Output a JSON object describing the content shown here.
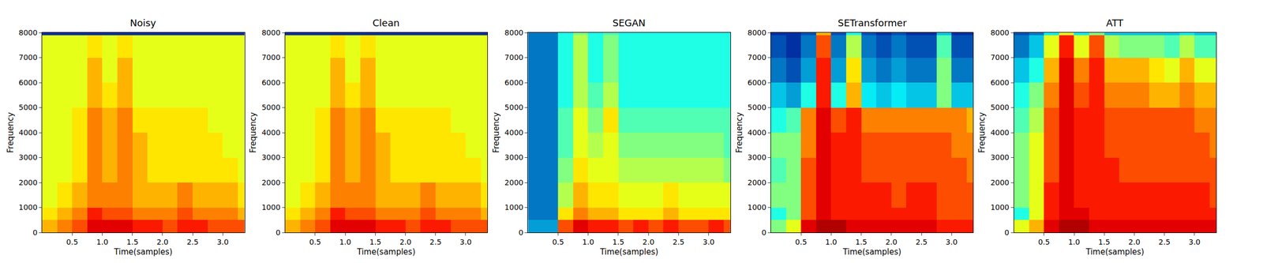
{
  "chart_data": [
    {
      "type": "heatmap",
      "title": "Noisy",
      "x_label": "Time(samples)",
      "y_label": "Frequency",
      "color": "Jet",
      "x": [
        0,
        0.25,
        0.5,
        0.75,
        1,
        1.25,
        1.5,
        1.75,
        2,
        2.25,
        2.5,
        2.75,
        3,
        3.25,
        3.5
      ],
      "y": [
        0,
        500,
        1000,
        2000,
        3000,
        4000,
        5000,
        6000,
        7000,
        7900,
        8000
      ],
      "z": [
        [
          7,
          7.5,
          8,
          9,
          9,
          9,
          8.5,
          8.5,
          8,
          8.5,
          8.5,
          8,
          8,
          8
        ],
        [
          6.5,
          7,
          7.5,
          8.5,
          8,
          8,
          7.5,
          7.5,
          7.5,
          8,
          7.5,
          7.5,
          7.5,
          7
        ],
        [
          6,
          6.5,
          7,
          7.5,
          7.5,
          7.5,
          7,
          7,
          7,
          7.5,
          7,
          7,
          7,
          6.5
        ],
        [
          6,
          6,
          6.5,
          7.5,
          7,
          7.5,
          7,
          6.5,
          6.5,
          6.5,
          6.5,
          6.5,
          6.5,
          6
        ],
        [
          6,
          6,
          6.5,
          7.5,
          7,
          7.5,
          7,
          6.5,
          6.5,
          6.5,
          6.5,
          6.5,
          6,
          6
        ],
        [
          6,
          6,
          6.5,
          7.5,
          7,
          7.5,
          6.5,
          6.5,
          6.5,
          6.5,
          6.5,
          6,
          6,
          6
        ],
        [
          6,
          6,
          6,
          7,
          6.5,
          7,
          6,
          6,
          6,
          6,
          6,
          6,
          6,
          6
        ],
        [
          6,
          6,
          6,
          7,
          6,
          7,
          6,
          6,
          6,
          6,
          6,
          6,
          6,
          6
        ],
        [
          6,
          6,
          6,
          6.5,
          6,
          6.5,
          6,
          6,
          6,
          6,
          6,
          6,
          6,
          6
        ],
        [
          1,
          1,
          1,
          1,
          1,
          1,
          1,
          1,
          1,
          1,
          1,
          1,
          1,
          1
        ]
      ],
      "zlim": [
        0,
        10
      ],
      "xlim": [
        0,
        3.36
      ],
      "ylim": [
        0,
        8000
      ],
      "xticks": [
        0.5,
        {
          "value": 1,
          "label": "1.0"
        },
        1.5,
        {
          "value": 2,
          "label": "2.0"
        },
        2.5,
        {
          "value": 3,
          "label": "3.0"
        }
      ],
      "yticks": [
        0,
        1000,
        2000,
        3000,
        4000,
        5000,
        6000,
        7000,
        8000
      ]
    },
    {
      "type": "heatmap",
      "title": "Clean",
      "x_label": "Time(samples)",
      "y_label": "Frequency",
      "color": "Jet",
      "x": [
        0,
        0.25,
        0.5,
        0.75,
        1,
        1.25,
        1.5,
        1.75,
        2,
        2.25,
        2.5,
        2.75,
        3,
        3.25,
        3.5
      ],
      "y": [
        0,
        500,
        1000,
        2000,
        3000,
        4000,
        5000,
        6000,
        7000,
        7900,
        8000
      ],
      "z": [
        [
          7,
          7.5,
          8,
          9,
          9,
          9,
          8.5,
          8.5,
          8,
          8.5,
          8.5,
          8,
          8,
          8
        ],
        [
          6.5,
          7,
          7.5,
          8.5,
          8,
          8,
          7.5,
          7.5,
          7.5,
          8,
          7.5,
          7.5,
          7.5,
          7
        ],
        [
          6,
          6.5,
          7,
          7.5,
          7.5,
          7.5,
          7,
          7,
          7,
          7.5,
          7,
          7,
          7,
          6.5
        ],
        [
          6,
          6,
          6.5,
          7.5,
          7,
          7.5,
          7,
          6.5,
          6.5,
          6.5,
          6.5,
          6.5,
          6.5,
          6
        ],
        [
          6,
          6,
          6.5,
          7.5,
          7,
          7.5,
          7,
          6.5,
          6.5,
          6.5,
          6.5,
          6.5,
          6,
          6
        ],
        [
          6,
          6,
          6.5,
          7.5,
          7,
          7.5,
          6.5,
          6.5,
          6.5,
          6.5,
          6.5,
          6,
          6,
          6
        ],
        [
          6,
          6,
          6,
          7,
          6.5,
          7,
          6,
          6,
          6,
          6,
          6,
          6,
          6,
          6
        ],
        [
          6,
          6,
          6,
          7,
          6,
          7,
          6,
          6,
          6,
          6,
          6,
          6,
          6,
          6
        ],
        [
          6,
          6,
          6,
          6.5,
          6,
          6.5,
          6,
          6,
          6,
          6,
          6,
          6,
          6,
          6
        ],
        [
          1,
          1,
          1,
          1,
          1,
          1,
          1,
          1,
          1,
          1,
          1,
          1,
          1,
          1
        ]
      ],
      "zlim": [
        0,
        10
      ],
      "xlim": [
        0,
        3.36
      ],
      "ylim": [
        0,
        8000
      ],
      "xticks": [
        0.5,
        {
          "value": 1,
          "label": "1.0"
        },
        1.5,
        {
          "value": 2,
          "label": "2.0"
        },
        2.5,
        {
          "value": 3,
          "label": "3.0"
        }
      ],
      "yticks": [
        0,
        1000,
        2000,
        3000,
        4000,
        5000,
        6000,
        7000,
        8000
      ]
    },
    {
      "type": "heatmap",
      "title": "SEGAN",
      "x_label": "Time(samples)",
      "y_label": "Frequency",
      "color": "Jet",
      "x": [
        0,
        0.25,
        0.5,
        0.75,
        1,
        1.25,
        1.5,
        1.75,
        2,
        2.25,
        2.5,
        2.75,
        3,
        3.25,
        3.5
      ],
      "y": [
        0,
        500,
        1000,
        2000,
        3000,
        4000,
        5000,
        6000,
        7000,
        7900,
        8000
      ],
      "z": [
        [
          2.5,
          2.5,
          8,
          9,
          8.5,
          8.5,
          8,
          8.5,
          8,
          8.5,
          8,
          8,
          8.5,
          8
        ],
        [
          2,
          2,
          6.5,
          7.5,
          7,
          7,
          6.5,
          6.5,
          6.5,
          7,
          6.5,
          6.5,
          6.5,
          6.5
        ],
        [
          2,
          2,
          5.5,
          7,
          6.5,
          6.5,
          6,
          6,
          6,
          6.5,
          6,
          6,
          6,
          6
        ],
        [
          2,
          2,
          5,
          6.5,
          6,
          6,
          5.5,
          5.5,
          5.5,
          5.5,
          5.5,
          5.5,
          5.5,
          5
        ],
        [
          2,
          2,
          4.5,
          6,
          5.5,
          6,
          5,
          5,
          5,
          5,
          5,
          5,
          5,
          4.5
        ],
        [
          2,
          2,
          4.5,
          6,
          5,
          6.5,
          4.5,
          4.5,
          4.5,
          4.5,
          4.5,
          4.5,
          4.5,
          4.5
        ],
        [
          2,
          2,
          4,
          5.5,
          4.5,
          5.5,
          4,
          4,
          4,
          4,
          4,
          4,
          4,
          4
        ],
        [
          2,
          2,
          4,
          5.5,
          4,
          5,
          4,
          4,
          4,
          4,
          4,
          4,
          4,
          4
        ],
        [
          2,
          2,
          4,
          5.5,
          4,
          5,
          4,
          4,
          4,
          4,
          4,
          4,
          4,
          4
        ],
        [
          2,
          2,
          4,
          5,
          4,
          4.5,
          4,
          4,
          4,
          4,
          4,
          4,
          4,
          4
        ]
      ],
      "zlim": [
        0,
        10
      ],
      "xlim": [
        0,
        3.36
      ],
      "ylim": [
        0,
        8000
      ],
      "xticks": [
        0.5,
        {
          "value": 1,
          "label": "1.0"
        },
        1.5,
        {
          "value": 2,
          "label": "2.0"
        },
        2.5,
        {
          "value": 3,
          "label": "3.0"
        }
      ],
      "yticks": [
        0,
        1000,
        2000,
        3000,
        4000,
        5000,
        6000,
        7000,
        8000
      ]
    },
    {
      "type": "heatmap",
      "title": "SETransformer",
      "x_label": "Time(samples)",
      "y_label": "Frequency",
      "color": "Jet",
      "x": [
        0,
        0.25,
        0.5,
        0.75,
        1,
        1.25,
        1.5,
        1.75,
        2,
        2.25,
        2.5,
        2.75,
        3,
        3.25,
        3.5
      ],
      "y": [
        0,
        500,
        1000,
        2000,
        3000,
        4000,
        5000,
        6000,
        7000,
        7900,
        8000
      ],
      "z": [
        [
          5,
          6,
          9,
          9.5,
          9.5,
          9,
          9,
          9,
          9,
          9,
          9,
          8.5,
          8.5,
          8.5
        ],
        [
          4,
          5,
          8,
          9,
          8.5,
          8.5,
          8.5,
          8.5,
          8.5,
          8.5,
          8.5,
          8,
          8,
          8
        ],
        [
          5,
          5,
          8,
          9,
          8.5,
          8.5,
          8.5,
          8.5,
          8,
          8.5,
          8.5,
          8,
          8,
          8
        ],
        [
          4.5,
          5,
          8,
          9,
          8.5,
          8.5,
          8,
          8,
          8,
          8,
          8,
          8,
          8,
          7.5
        ],
        [
          5,
          5,
          7.5,
          9,
          8.5,
          8.5,
          8,
          8,
          8,
          8,
          8,
          8,
          7.5,
          7.5
        ],
        [
          4,
          4.5,
          7.5,
          9,
          8,
          8.5,
          7.5,
          7.5,
          7.5,
          7.5,
          7.5,
          7.5,
          7.5,
          7
        ],
        [
          3,
          2.5,
          4,
          8.5,
          4,
          7,
          3.5,
          3,
          3.5,
          3,
          3,
          5,
          3,
          3
        ],
        [
          2,
          1.5,
          2.5,
          8.5,
          2.5,
          6.5,
          2.5,
          2,
          2.5,
          2,
          2,
          5,
          2,
          2
        ],
        [
          1.5,
          1,
          2,
          8,
          2,
          5.5,
          2,
          1.5,
          2,
          1.5,
          1.5,
          4.5,
          1.5,
          1.5
        ],
        [
          1,
          1,
          1.5,
          7,
          1.5,
          4,
          1.5,
          1,
          1.5,
          1,
          1,
          3,
          1,
          1
        ]
      ],
      "zlim": [
        0,
        10
      ],
      "xlim": [
        0,
        3.36
      ],
      "ylim": [
        0,
        8000
      ],
      "xticks": [
        0.5,
        {
          "value": 1,
          "label": "1.0"
        },
        1.5,
        {
          "value": 2,
          "label": "2.0"
        },
        2.5,
        {
          "value": 3,
          "label": "3.0"
        }
      ],
      "yticks": [
        0,
        1000,
        2000,
        3000,
        4000,
        5000,
        6000,
        7000,
        8000
      ]
    },
    {
      "type": "heatmap",
      "title": "ATT",
      "x_label": "Time(samples)",
      "y_label": "Frequency",
      "color": "Jet",
      "x": [
        0,
        0.25,
        0.5,
        0.75,
        1,
        1.25,
        1.5,
        1.75,
        2,
        2.25,
        2.5,
        2.75,
        3,
        3.25,
        3.5
      ],
      "y": [
        0,
        500,
        1000,
        2000,
        3000,
        4000,
        5000,
        6000,
        7000,
        7900,
        8000
      ],
      "z": [
        [
          6,
          7,
          9,
          9.5,
          9.5,
          9,
          9,
          9,
          9,
          9,
          9,
          9,
          9,
          9
        ],
        [
          4,
          6,
          8.5,
          9,
          9,
          8.5,
          8.5,
          8.5,
          8.5,
          8.5,
          8.5,
          8.5,
          8.5,
          8.5
        ],
        [
          5,
          6,
          8.5,
          9,
          8.5,
          8.5,
          8.5,
          8.5,
          8.5,
          8.5,
          8.5,
          8.5,
          8.5,
          8
        ],
        [
          5,
          6,
          8,
          9,
          8.5,
          8.5,
          8.5,
          8,
          8,
          8,
          8,
          8,
          8,
          8
        ],
        [
          5,
          6,
          8,
          9,
          8.5,
          8.5,
          8,
          8,
          8,
          8,
          8,
          8,
          8,
          7.5
        ],
        [
          4.5,
          5.5,
          8,
          9,
          8.5,
          8.5,
          8,
          8,
          8,
          8,
          8,
          8,
          7.5,
          7.5
        ],
        [
          4,
          5,
          7.5,
          9,
          8,
          8.5,
          7.5,
          7.5,
          7.5,
          7,
          7,
          7.5,
          7,
          7
        ],
        [
          3,
          4,
          7,
          9,
          7.5,
          8.5,
          7,
          7,
          7,
          6.5,
          6,
          7,
          6,
          6
        ],
        [
          2,
          3,
          6,
          8.5,
          6,
          8,
          5.5,
          5,
          5,
          5,
          4.5,
          5.5,
          4.5,
          4.5
        ],
        [
          1.5,
          2,
          3.5,
          6,
          3.5,
          5,
          3,
          3,
          3,
          3,
          3,
          3.5,
          3,
          3
        ]
      ],
      "zlim": [
        0,
        10
      ],
      "xlim": [
        0,
        3.36
      ],
      "ylim": [
        0,
        8000
      ],
      "xticks": [
        0.5,
        {
          "value": 1,
          "label": "1.0"
        },
        1.5,
        {
          "value": 2,
          "label": "2.0"
        },
        2.5,
        {
          "value": 3,
          "label": "3.0"
        }
      ],
      "yticks": [
        0,
        1000,
        2000,
        3000,
        4000,
        5000,
        6000,
        7000,
        8000
      ]
    }
  ]
}
